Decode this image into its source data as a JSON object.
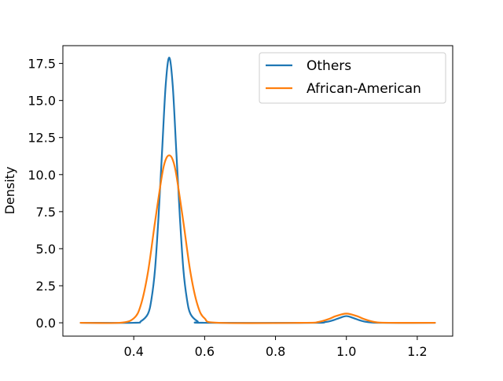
{
  "chart_data": {
    "type": "line",
    "title": "",
    "xlabel": "",
    "ylabel": "Density",
    "xlim": [
      0.2,
      1.3
    ],
    "ylim": [
      -0.9,
      18.7
    ],
    "x_ticks": [
      0.4,
      0.6,
      0.8,
      1.0,
      1.2
    ],
    "x_tick_labels": [
      "0.4",
      "0.6",
      "0.8",
      "1.0",
      "1.2"
    ],
    "y_ticks": [
      0.0,
      2.5,
      5.0,
      7.5,
      10.0,
      12.5,
      15.0,
      17.5
    ],
    "y_tick_labels": [
      "0.0",
      "2.5",
      "5.0",
      "7.5",
      "10.0",
      "12.5",
      "15.0",
      "17.5"
    ],
    "grid": false,
    "legend_position": "top-right",
    "series": [
      {
        "name": "Others",
        "color": "#1f77b4",
        "x": [
          0.25,
          0.4,
          0.42,
          0.44,
          0.45,
          0.46,
          0.47,
          0.48,
          0.49,
          0.5,
          0.51,
          0.52,
          0.53,
          0.54,
          0.55,
          0.56,
          0.58,
          0.6,
          0.9,
          0.94,
          0.96,
          0.98,
          1.0,
          1.02,
          1.04,
          1.06,
          1.1,
          1.25
        ],
        "y": [
          0.0,
          0.0,
          0.1,
          0.6,
          1.6,
          3.6,
          7.2,
          11.6,
          16.0,
          17.9,
          16.0,
          11.6,
          7.2,
          3.6,
          1.6,
          0.6,
          0.1,
          0.0,
          0.0,
          0.05,
          0.15,
          0.32,
          0.45,
          0.32,
          0.15,
          0.05,
          0.0,
          0.0
        ]
      },
      {
        "name": "African-American",
        "color": "#ff7f0e",
        "x": [
          0.25,
          0.36,
          0.4,
          0.42,
          0.44,
          0.46,
          0.48,
          0.49,
          0.5,
          0.51,
          0.52,
          0.54,
          0.56,
          0.58,
          0.6,
          0.64,
          0.88,
          0.92,
          0.95,
          0.97,
          1.0,
          1.03,
          1.05,
          1.08,
          1.12,
          1.25
        ],
        "y": [
          0.0,
          0.0,
          0.3,
          1.2,
          3.4,
          6.8,
          10.0,
          11.0,
          11.3,
          11.0,
          10.0,
          6.8,
          3.4,
          1.2,
          0.3,
          0.0,
          0.0,
          0.05,
          0.25,
          0.45,
          0.62,
          0.45,
          0.25,
          0.05,
          0.0,
          0.0
        ]
      }
    ]
  }
}
